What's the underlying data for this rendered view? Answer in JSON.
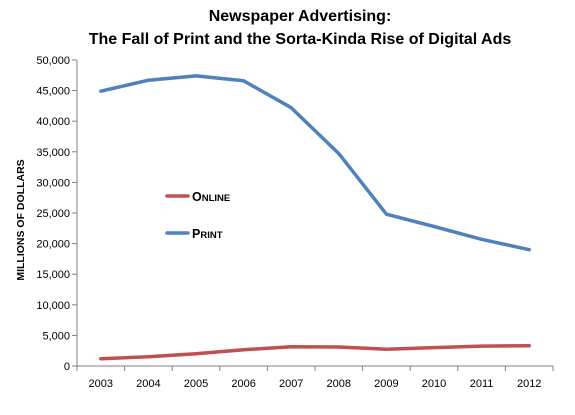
{
  "chart_data": {
    "type": "line",
    "title_lines": [
      "Newspaper Advertising:",
      "The Fall of Print and the Sorta-Kinda Rise of Digital Ads"
    ],
    "xlabel": "",
    "ylabel": "MILLIONS OF DOLLARS",
    "x": [
      2003,
      2004,
      2005,
      2006,
      2007,
      2008,
      2009,
      2010,
      2011,
      2012
    ],
    "x_tick_labels": [
      "2003",
      "2004",
      "2005",
      "2006",
      "2007",
      "2008",
      "2009",
      "2010",
      "2011",
      "2012"
    ],
    "ylim": [
      0,
      50000
    ],
    "y_tick_labels": [
      "0",
      "5,000",
      "10,000",
      "15,000",
      "20,000",
      "25,000",
      "30,000",
      "35,000",
      "40,000",
      "45,000",
      "50,000"
    ],
    "grid": false,
    "legend_position": "middle-left",
    "series": [
      {
        "name": "Online",
        "name_display": [
          "O",
          "NLINE"
        ],
        "color": "#c0504d",
        "values": [
          1200,
          1500,
          2000,
          2650,
          3150,
          3100,
          2750,
          3000,
          3250,
          3300
        ]
      },
      {
        "name": "Print",
        "name_display": [
          "P",
          "RINT"
        ],
        "color": "#4f81bd",
        "values": [
          44900,
          46700,
          47400,
          46600,
          42200,
          34700,
          24800,
          22800,
          20700,
          19000
        ]
      }
    ]
  }
}
